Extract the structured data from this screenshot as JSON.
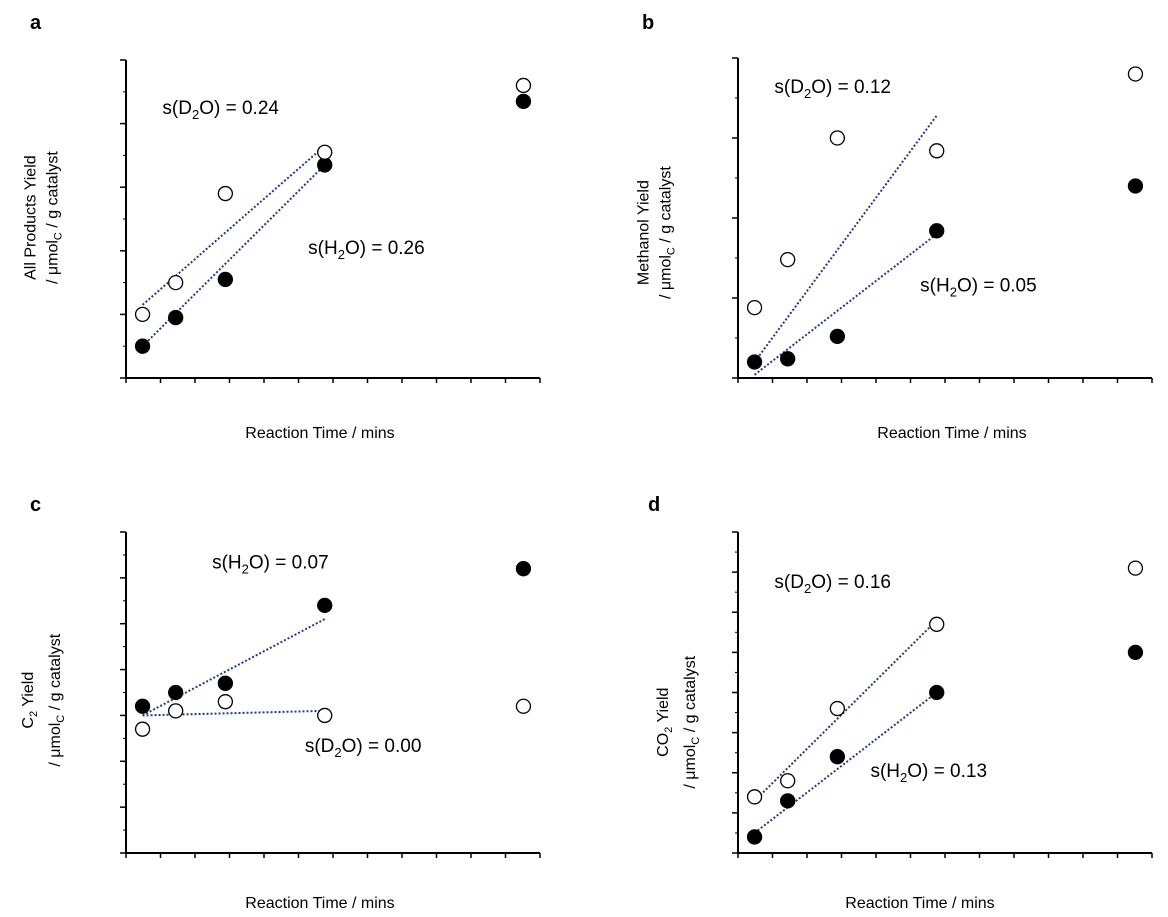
{
  "colors": {
    "axis": "#000000",
    "fit_line": "#1f3c88",
    "filled_marker": "#000000",
    "open_marker_fill": "#ffffff"
  },
  "chart_data": [
    {
      "panel": "a",
      "type": "scatter",
      "xlabel": "Reaction Time  / mins",
      "ylabel_line1": "All Products Yield",
      "ylabel_line2_prefix": "/ μmol",
      "ylabel_line2_sub": "C",
      "ylabel_line2_suffix": " / g catalyst",
      "xlim": [
        0,
        125
      ],
      "ylim": [
        0,
        10
      ],
      "x_ticks": 12,
      "y_ticks": 5,
      "series": [
        {
          "marker": "filled",
          "points": [
            [
              5,
              1.0
            ],
            [
              15,
              1.9
            ],
            [
              30,
              3.1
            ],
            [
              60,
              6.7
            ],
            [
              120,
              8.7
            ]
          ],
          "fit": [
            [
              5,
              1.0
            ],
            [
              60,
              6.7
            ]
          ]
        },
        {
          "marker": "open",
          "points": [
            [
              5,
              2.0
            ],
            [
              15,
              3.0
            ],
            [
              30,
              5.8
            ],
            [
              60,
              7.1
            ],
            [
              120,
              9.2
            ]
          ],
          "fit": [
            [
              5,
              2.3
            ],
            [
              60,
              7.3
            ]
          ]
        }
      ],
      "annotations": [
        {
          "pre": "s(D",
          "sub": "2",
          "post": "O) = 0.24",
          "x": 11,
          "y": 8.3
        },
        {
          "pre": "s(H",
          "sub": "2",
          "post": "O) = 0.26",
          "x": 55,
          "y": 3.9
        }
      ]
    },
    {
      "panel": "b",
      "type": "scatter",
      "xlabel": "Reaction Time  / mins",
      "ylabel_line1": "Methanol Yield",
      "ylabel_line2_prefix": "/ μmol",
      "ylabel_line2_sub": "C",
      "ylabel_line2_suffix": " / g catalyst",
      "xlim": [
        0,
        125
      ],
      "ylim": [
        0,
        10
      ],
      "x_ticks": 12,
      "y_ticks": 4,
      "series": [
        {
          "marker": "filled",
          "points": [
            [
              5,
              0.5
            ],
            [
              15,
              0.6
            ],
            [
              30,
              1.3
            ],
            [
              60,
              4.6
            ],
            [
              120,
              6.0
            ]
          ],
          "fit": [
            [
              5,
              0.1
            ],
            [
              60,
              4.5
            ]
          ]
        },
        {
          "marker": "open",
          "points": [
            [
              5,
              2.2
            ],
            [
              15,
              3.7
            ],
            [
              30,
              7.5
            ],
            [
              60,
              7.1
            ],
            [
              120,
              9.5
            ]
          ],
          "fit": [
            [
              5,
              0.5
            ],
            [
              60,
              8.2
            ]
          ]
        }
      ],
      "annotations": [
        {
          "pre": "s(D",
          "sub": "2",
          "post": "O) = 0.12",
          "x": 11,
          "y": 8.9
        },
        {
          "pre": "s(H",
          "sub": "2",
          "post": "O) = 0.05",
          "x": 55,
          "y": 2.7
        }
      ]
    },
    {
      "panel": "c",
      "type": "scatter",
      "xlabel": "Reaction Time  / mins",
      "ylabel_line1_prefix": "C",
      "ylabel_line1_sub": "2",
      "ylabel_line1_suffix": "  Yield",
      "ylabel_line2_prefix": "/ μmol",
      "ylabel_line2_sub": "C",
      "ylabel_line2_suffix": " / g catalyst",
      "xlim": [
        0,
        125
      ],
      "ylim": [
        0,
        7
      ],
      "x_ticks": 12,
      "y_ticks": 7,
      "series": [
        {
          "marker": "filled",
          "points": [
            [
              5,
              3.2
            ],
            [
              15,
              3.5
            ],
            [
              30,
              3.7
            ],
            [
              60,
              5.4
            ],
            [
              120,
              6.2
            ]
          ],
          "fit": [
            [
              5,
              3.0
            ],
            [
              60,
              5.1
            ]
          ]
        },
        {
          "marker": "open",
          "points": [
            [
              5,
              2.7
            ],
            [
              15,
              3.1
            ],
            [
              30,
              3.3
            ],
            [
              60,
              3.0
            ],
            [
              120,
              3.2
            ]
          ],
          "fit": [
            [
              5,
              3.0
            ],
            [
              60,
              3.1
            ]
          ]
        }
      ],
      "annotations": [
        {
          "pre": "s(H",
          "sub": "2",
          "post": "O) = 0.07",
          "x": 26,
          "y": 6.2
        },
        {
          "pre": "s(D",
          "sub": "2",
          "post": "O) = 0.00",
          "x": 54,
          "y": 2.2
        }
      ]
    },
    {
      "panel": "d",
      "type": "scatter",
      "xlabel": "Reaction Time  / mins",
      "ylabel_line1_prefix": "CO",
      "ylabel_line1_sub": "2",
      "ylabel_line1_suffix": "  Yield",
      "ylabel_line2_prefix": "/ μmol",
      "ylabel_line2_sub": "C",
      "ylabel_line2_suffix": " / g catalyst",
      "xlim": [
        0,
        125
      ],
      "ylim": [
        0,
        8
      ],
      "x_ticks": 12,
      "y_ticks": 8,
      "series": [
        {
          "marker": "filled",
          "points": [
            [
              5,
              0.4
            ],
            [
              15,
              1.3
            ],
            [
              30,
              2.4
            ],
            [
              60,
              4.0
            ],
            [
              120,
              5.0
            ]
          ],
          "fit": [
            [
              5,
              0.5
            ],
            [
              60,
              4.0
            ]
          ]
        },
        {
          "marker": "open",
          "points": [
            [
              5,
              1.4
            ],
            [
              15,
              1.8
            ],
            [
              30,
              3.6
            ],
            [
              60,
              5.7
            ],
            [
              120,
              7.1
            ]
          ],
          "fit": [
            [
              5,
              1.3
            ],
            [
              60,
              5.8
            ]
          ]
        }
      ],
      "annotations": [
        {
          "pre": "s(D",
          "sub": "2",
          "post": "O) = 0.16",
          "x": 11,
          "y": 6.6
        },
        {
          "pre": "s(H",
          "sub": "2",
          "post": "O) = 0.13",
          "x": 40,
          "y": 1.9
        }
      ]
    }
  ]
}
